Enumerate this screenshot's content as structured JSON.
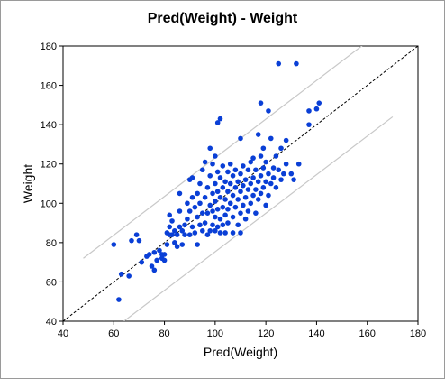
{
  "chart_data": {
    "type": "scatter",
    "title": "Pred(Weight) - Weight",
    "xlabel": "Pred(Weight)",
    "ylabel": "Weight",
    "xlim": [
      40,
      180
    ],
    "ylim": [
      40,
      180
    ],
    "xticks": [
      40,
      60,
      80,
      100,
      120,
      140,
      160,
      180
    ],
    "yticks": [
      40,
      60,
      80,
      100,
      120,
      140,
      160,
      180
    ],
    "grid": false,
    "colors": {
      "points": "#0a3fd6",
      "reference": "#000000",
      "bands": "#c8c8c8"
    },
    "reference_line": {
      "from": [
        40,
        40
      ],
      "to": [
        180,
        180
      ],
      "style": "dashed"
    },
    "prediction_bands": {
      "upper": [
        [
          48,
          72
        ],
        [
          170,
          192
        ]
      ],
      "lower": [
        [
          64,
          40
        ],
        [
          170,
          144
        ]
      ]
    },
    "points": [
      [
        60,
        79
      ],
      [
        62,
        51
      ],
      [
        63,
        64
      ],
      [
        66,
        63
      ],
      [
        67,
        81
      ],
      [
        69,
        84
      ],
      [
        70,
        81
      ],
      [
        71,
        70
      ],
      [
        73,
        73
      ],
      [
        74,
        74
      ],
      [
        75,
        68
      ],
      [
        76,
        66
      ],
      [
        76,
        75
      ],
      [
        77,
        71
      ],
      [
        78,
        76
      ],
      [
        79,
        72
      ],
      [
        79,
        74
      ],
      [
        80,
        71
      ],
      [
        80,
        74
      ],
      [
        81,
        79
      ],
      [
        81,
        85
      ],
      [
        82,
        84
      ],
      [
        82,
        88
      ],
      [
        82,
        94
      ],
      [
        83,
        84
      ],
      [
        83,
        91
      ],
      [
        84,
        80
      ],
      [
        84,
        86
      ],
      [
        85,
        78
      ],
      [
        85,
        84
      ],
      [
        86,
        88
      ],
      [
        86,
        96
      ],
      [
        86,
        105
      ],
      [
        87,
        86
      ],
      [
        87,
        79
      ],
      [
        88,
        84
      ],
      [
        88,
        89
      ],
      [
        89,
        92
      ],
      [
        89,
        100
      ],
      [
        90,
        96
      ],
      [
        90,
        84
      ],
      [
        90,
        112
      ],
      [
        91,
        88
      ],
      [
        91,
        103
      ],
      [
        91,
        113
      ],
      [
        92,
        85
      ],
      [
        92,
        98
      ],
      [
        93,
        93
      ],
      [
        93,
        105
      ],
      [
        93,
        79
      ],
      [
        94,
        89
      ],
      [
        94,
        100
      ],
      [
        94,
        110
      ],
      [
        95,
        86
      ],
      [
        95,
        95
      ],
      [
        95,
        117
      ],
      [
        96,
        90
      ],
      [
        96,
        103
      ],
      [
        96,
        121
      ],
      [
        97,
        84
      ],
      [
        97,
        95
      ],
      [
        97,
        108
      ],
      [
        98,
        86
      ],
      [
        98,
        99
      ],
      [
        98,
        114
      ],
      [
        98,
        128
      ],
      [
        99,
        89
      ],
      [
        99,
        96
      ],
      [
        99,
        105
      ],
      [
        99,
        120
      ],
      [
        100,
        86
      ],
      [
        100,
        93
      ],
      [
        100,
        101
      ],
      [
        100,
        110
      ],
      [
        100,
        124
      ],
      [
        101,
        88
      ],
      [
        101,
        97
      ],
      [
        101,
        106
      ],
      [
        101,
        116
      ],
      [
        101,
        141
      ],
      [
        102,
        85
      ],
      [
        102,
        92
      ],
      [
        102,
        103
      ],
      [
        102,
        113
      ],
      [
        102,
        143
      ],
      [
        103,
        89
      ],
      [
        103,
        98
      ],
      [
        103,
        108
      ],
      [
        103,
        119
      ],
      [
        104,
        94
      ],
      [
        104,
        102
      ],
      [
        104,
        111
      ],
      [
        104,
        85
      ],
      [
        105,
        97
      ],
      [
        105,
        106
      ],
      [
        105,
        116
      ],
      [
        105,
        90
      ],
      [
        106,
        100
      ],
      [
        106,
        110
      ],
      [
        106,
        120
      ],
      [
        107,
        93
      ],
      [
        107,
        104
      ],
      [
        107,
        114
      ],
      [
        107,
        85
      ],
      [
        108,
        98
      ],
      [
        108,
        108
      ],
      [
        108,
        117
      ],
      [
        109,
        102
      ],
      [
        109,
        111
      ],
      [
        109,
        89
      ],
      [
        110,
        95
      ],
      [
        110,
        106
      ],
      [
        110,
        115
      ],
      [
        110,
        133
      ],
      [
        110,
        85
      ],
      [
        111,
        99
      ],
      [
        111,
        109
      ],
      [
        111,
        119
      ],
      [
        112,
        103
      ],
      [
        112,
        112
      ],
      [
        112,
        92
      ],
      [
        113,
        107
      ],
      [
        113,
        117
      ],
      [
        113,
        96
      ],
      [
        114,
        110
      ],
      [
        114,
        121
      ],
      [
        114,
        100
      ],
      [
        115,
        104
      ],
      [
        115,
        113
      ],
      [
        115,
        123
      ],
      [
        116,
        107
      ],
      [
        116,
        117
      ],
      [
        116,
        95
      ],
      [
        117,
        111
      ],
      [
        117,
        135
      ],
      [
        117,
        102
      ],
      [
        118,
        114
      ],
      [
        118,
        124
      ],
      [
        118,
        105
      ],
      [
        118,
        151
      ],
      [
        119,
        108
      ],
      [
        119,
        118
      ],
      [
        119,
        128
      ],
      [
        120,
        111
      ],
      [
        120,
        121
      ],
      [
        120,
        99
      ],
      [
        121,
        115
      ],
      [
        121,
        147
      ],
      [
        121,
        104
      ],
      [
        122,
        110
      ],
      [
        122,
        133
      ],
      [
        123,
        118
      ],
      [
        123,
        113
      ],
      [
        124,
        124
      ],
      [
        124,
        108
      ],
      [
        125,
        171
      ],
      [
        125,
        117
      ],
      [
        126,
        128
      ],
      [
        126,
        112
      ],
      [
        127,
        115
      ],
      [
        128,
        132
      ],
      [
        128,
        120
      ],
      [
        130,
        115
      ],
      [
        131,
        112
      ],
      [
        132,
        171
      ],
      [
        133,
        120
      ],
      [
        137,
        147
      ],
      [
        137,
        140
      ],
      [
        140,
        148
      ],
      [
        141,
        151
      ]
    ]
  }
}
